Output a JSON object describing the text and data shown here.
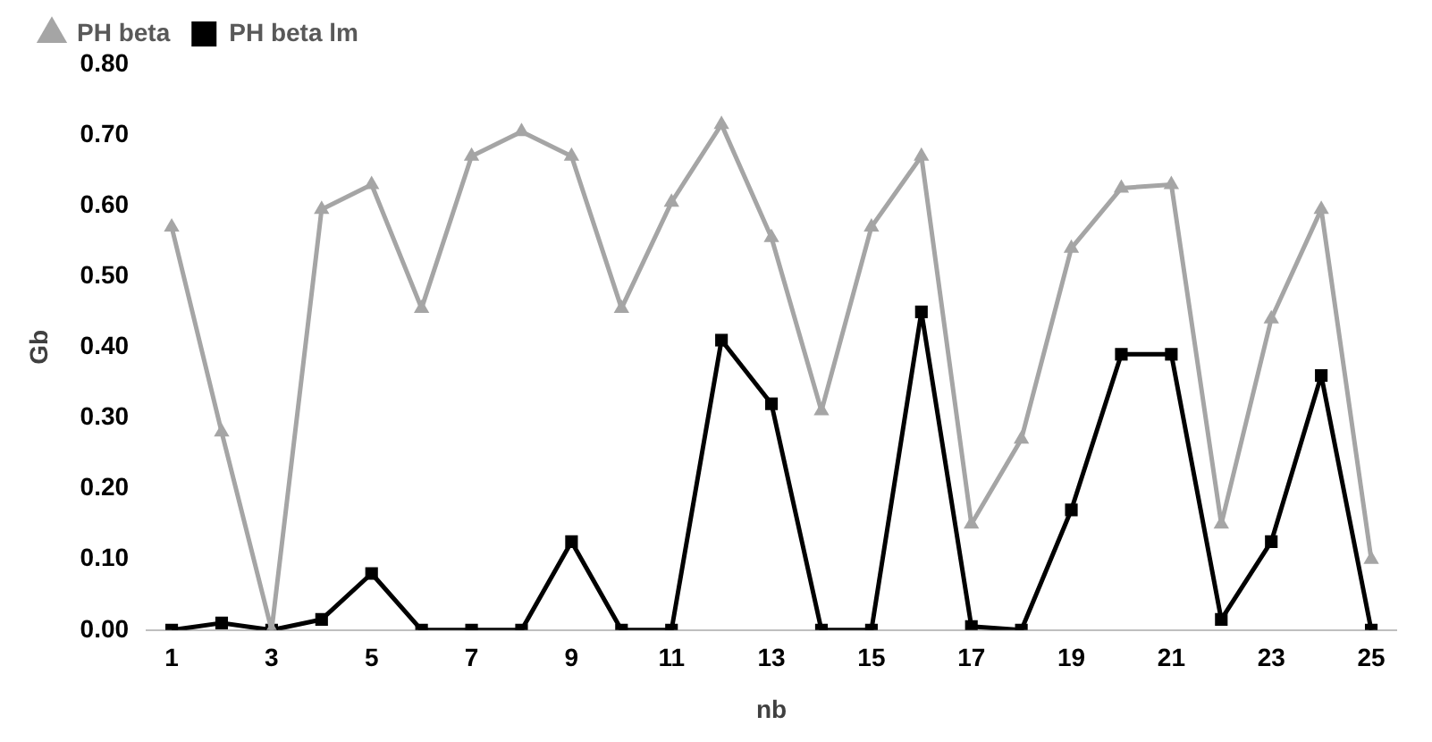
{
  "chart_data": {
    "type": "line",
    "xlabel": "nb",
    "ylabel": "Gb",
    "x": [
      1,
      2,
      3,
      4,
      5,
      6,
      7,
      8,
      9,
      10,
      11,
      12,
      13,
      14,
      15,
      16,
      17,
      18,
      19,
      20,
      21,
      22,
      23,
      24,
      25
    ],
    "series": [
      {
        "name": "PH beta",
        "color": "#a5a5a5",
        "marker": "triangle",
        "values": [
          0.57,
          0.28,
          0.0,
          0.595,
          0.63,
          0.455,
          0.67,
          0.705,
          0.67,
          0.455,
          0.605,
          0.715,
          0.555,
          0.31,
          0.57,
          0.67,
          0.15,
          0.27,
          0.54,
          0.625,
          0.63,
          0.15,
          0.44,
          0.595,
          0.1
        ]
      },
      {
        "name": "PH beta lm",
        "color": "#000000",
        "marker": "square",
        "values": [
          0.0,
          0.01,
          0.0,
          0.015,
          0.08,
          0.0,
          0.0,
          0.0,
          0.125,
          0.0,
          0.0,
          0.41,
          0.32,
          0.0,
          0.0,
          0.45,
          0.005,
          0.0,
          0.17,
          0.39,
          0.39,
          0.015,
          0.125,
          0.36,
          0.0
        ]
      }
    ],
    "xlim": [
      0.5,
      25.5
    ],
    "xticks": [
      1,
      3,
      5,
      7,
      9,
      11,
      13,
      15,
      17,
      19,
      21,
      23,
      25
    ],
    "ylim": [
      0,
      0.8
    ],
    "yticks": [
      {
        "value": 0,
        "label": "0.00"
      },
      {
        "value": 0.1,
        "label": "0.10"
      },
      {
        "value": 0.2,
        "label": "0.20"
      },
      {
        "value": 0.3,
        "label": "0.30"
      },
      {
        "value": 0.4,
        "label": "0.40"
      },
      {
        "value": 0.5,
        "label": "0.50"
      },
      {
        "value": 0.6,
        "label": "0.60"
      },
      {
        "value": 0.7,
        "label": "0.70"
      },
      {
        "value": 0.8,
        "label": "0.80"
      }
    ],
    "grid": false,
    "legend": "top left",
    "line_style": "solid"
  }
}
